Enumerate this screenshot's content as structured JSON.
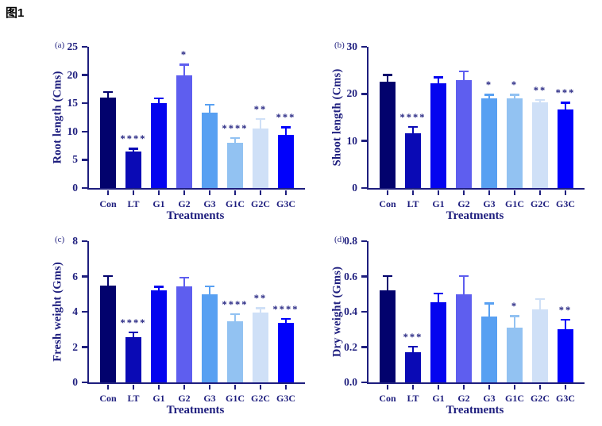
{
  "figure_title": "图1",
  "palette": {
    "text_navy": "#1e1e7e",
    "axis_navy": "#1e1e7e",
    "background": "#ffffff",
    "bar_colors": [
      "#02026d",
      "#0a0ab5",
      "#0404ef",
      "#5e5eef",
      "#58a0f2",
      "#92c2f2",
      "#cfe0f7",
      "#0101fb"
    ]
  },
  "chart_data": [
    {
      "type": "bar",
      "panel_label": "(a)",
      "ylabel": "Root length (Cms)",
      "xlabel": "Treatments",
      "categories": [
        "Con",
        "LT",
        "G1",
        "G2",
        "G3",
        "G1C",
        "G2C",
        "G3C"
      ],
      "values": [
        16.0,
        6.5,
        15.0,
        20.0,
        13.4,
        8.0,
        10.6,
        9.4
      ],
      "errors": [
        1.1,
        0.6,
        1.0,
        2.0,
        1.5,
        1.0,
        1.8,
        1.5
      ],
      "significance": [
        "",
        "****",
        "",
        "*",
        "",
        "****",
        "**",
        "***"
      ],
      "ylim": [
        0,
        25
      ],
      "ytick_values": [
        0,
        5,
        10,
        15,
        20,
        25
      ],
      "ytick_labels": [
        "0",
        "5",
        "10",
        "15",
        "20",
        "25"
      ],
      "grid": false,
      "legend": "none"
    },
    {
      "type": "bar",
      "panel_label": "(b)",
      "ylabel": "Shoot length (Cms)",
      "xlabel": "Treatments",
      "categories": [
        "Con",
        "LT",
        "G1",
        "G2",
        "G3",
        "G1C",
        "G2C",
        "G3C"
      ],
      "values": [
        22.6,
        11.6,
        22.3,
        23.0,
        19.1,
        19.1,
        18.2,
        16.7
      ],
      "errors": [
        1.6,
        1.6,
        1.4,
        2.0,
        0.9,
        0.9,
        0.7,
        1.6
      ],
      "significance": [
        "",
        "****",
        "",
        "",
        "*",
        "*",
        "**",
        "***"
      ],
      "ylim": [
        0,
        30
      ],
      "ytick_values": [
        0,
        10,
        20,
        30
      ],
      "ytick_labels": [
        "0",
        "10",
        "20",
        "30"
      ],
      "grid": false,
      "legend": "none"
    },
    {
      "type": "bar",
      "panel_label": "(c)",
      "ylabel": "Fresh weight (Gms)",
      "xlabel": "Treatments",
      "categories": [
        "Con",
        "LT",
        "G1",
        "G2",
        "G3",
        "G1C",
        "G2C",
        "G3C"
      ],
      "values": [
        5.5,
        2.55,
        5.2,
        5.45,
        5.0,
        3.45,
        3.95,
        3.35
      ],
      "errors": [
        0.58,
        0.33,
        0.27,
        0.52,
        0.5,
        0.47,
        0.3,
        0.3
      ],
      "significance": [
        "",
        "****",
        "",
        "",
        "",
        "****",
        "**",
        "****"
      ],
      "ylim": [
        0,
        8
      ],
      "ytick_values": [
        0,
        2,
        4,
        6,
        8
      ],
      "ytick_labels": [
        "0",
        "2",
        "4",
        "6",
        "8"
      ],
      "grid": false,
      "legend": "none"
    },
    {
      "type": "bar",
      "panel_label": "(d)",
      "ylabel": "Dry weight (Gms)",
      "xlabel": "Treatments",
      "categories": [
        "Con",
        "LT",
        "G1",
        "G2",
        "G3",
        "G1C",
        "G2C",
        "G3C"
      ],
      "values": [
        0.52,
        0.17,
        0.455,
        0.5,
        0.375,
        0.31,
        0.415,
        0.3
      ],
      "errors": [
        0.088,
        0.038,
        0.052,
        0.107,
        0.077,
        0.07,
        0.062,
        0.06
      ],
      "significance": [
        "",
        "***",
        "",
        "",
        "",
        "*",
        "",
        "**"
      ],
      "ylim": [
        0,
        0.8
      ],
      "ytick_values": [
        0,
        0.2,
        0.4,
        0.6,
        0.8
      ],
      "ytick_labels": [
        "0.0",
        "0.2",
        "0.4",
        "0.6",
        "0.8"
      ],
      "grid": false,
      "legend": "none"
    }
  ]
}
